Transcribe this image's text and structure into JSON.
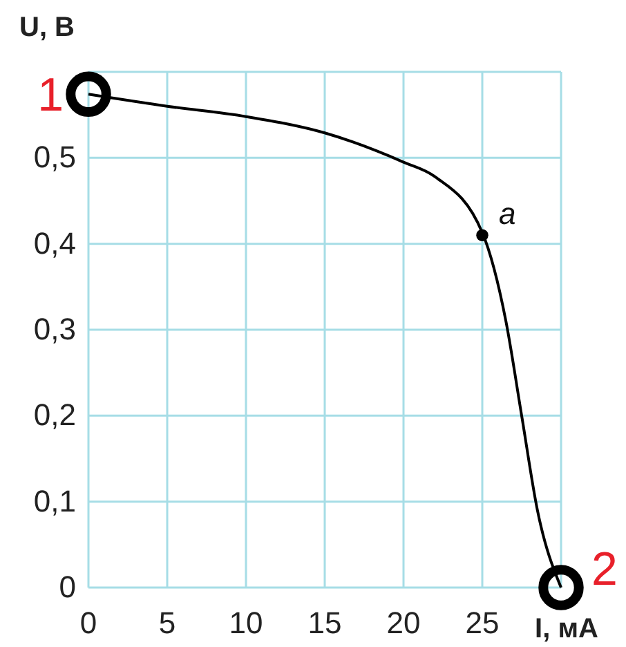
{
  "chart_data": {
    "type": "line",
    "xlabel": "I, мА",
    "ylabel": "U, В",
    "xlim": [
      0,
      30
    ],
    "ylim": [
      0,
      0.6
    ],
    "xticks": [
      0,
      5,
      10,
      15,
      20,
      25,
      {
        "value": 30,
        "label": null
      }
    ],
    "yticks": [
      0,
      {
        "value": 0.1,
        "label": "0,1"
      },
      {
        "value": 0.2,
        "label": "0,2"
      },
      {
        "value": 0.3,
        "label": "0,3"
      },
      {
        "value": 0.4,
        "label": "0,4"
      },
      {
        "value": 0.5,
        "label": "0,5"
      },
      {
        "value": 0.6,
        "label": null
      }
    ],
    "grid": true,
    "series": [
      {
        "color": "#000000",
        "marker": "none",
        "line_style": "solid",
        "x": [
          0,
          5,
          10,
          15,
          20,
          22,
          25,
          26.5,
          27.5,
          28.5,
          30
        ],
        "values": [
          0.574,
          0.56,
          0.548,
          0.529,
          0.495,
          0.478,
          0.413,
          0.31,
          0.2,
          0.09,
          0
        ]
      },
      {
        "type": "scatter",
        "color": "#000000",
        "marker": "circle",
        "x": [
          0,
          30
        ],
        "values": [
          0.574,
          0
        ]
      },
      {
        "type": "scatter",
        "color": "#000000",
        "marker": "circle",
        "x": [
          25
        ],
        "values": [
          0.41
        ]
      }
    ],
    "annotations": [
      {
        "text": "1",
        "x": 0,
        "y": 0.574
      },
      {
        "text": "2",
        "x": 30,
        "y": 0
      },
      {
        "text": "a",
        "x": 25,
        "y": 0.41
      }
    ]
  }
}
